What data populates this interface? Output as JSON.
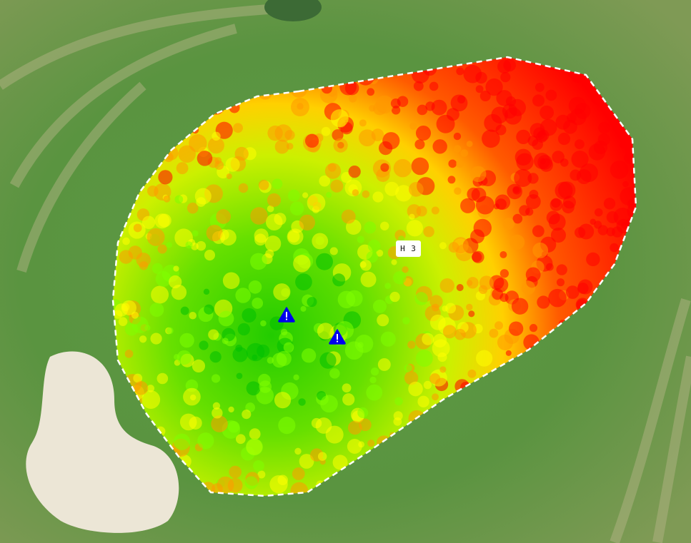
{
  "map": {
    "hole_label": "H 3",
    "heatmap_scale_colors": [
      "#00c000",
      "#80ff00",
      "#ffff00",
      "#ff9900",
      "#ff0000"
    ],
    "boundary_color": "#ffffff",
    "warning_markers": [
      {
        "icon": "warning-triangle-icon",
        "color": "#0000ee"
      },
      {
        "icon": "warning-triangle-icon",
        "color": "#0000ee"
      }
    ]
  }
}
